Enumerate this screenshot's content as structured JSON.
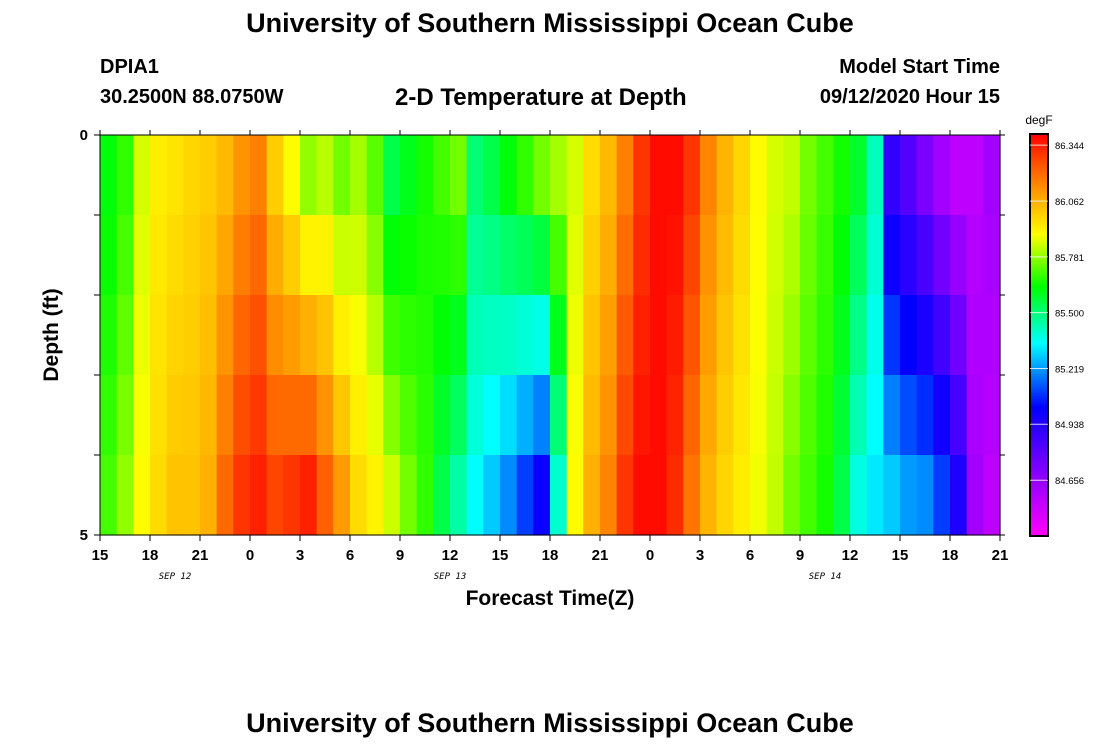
{
  "header": {
    "title": "University of Southern Mississippi Ocean Cube",
    "station": "DPIA1",
    "coords": "30.2500N 88.0750W",
    "subtitle": "2-D Temperature at Depth",
    "model_label": "Model Start Time",
    "model_time": "09/12/2020 Hour 15"
  },
  "footer": {
    "title": "University of Southern Mississippi Ocean Cube"
  },
  "chart_data": {
    "type": "heatmap",
    "xlabel": "Forecast Time(Z)",
    "ylabel": "Depth (ft)",
    "x_tick_labels": [
      "15",
      "18",
      "21",
      "0",
      "3",
      "6",
      "9",
      "12",
      "15",
      "18",
      "21",
      "0",
      "3",
      "6",
      "9",
      "12",
      "15",
      "18",
      "21"
    ],
    "date_labels": [
      {
        "label": "SEP 12",
        "x": 4.5
      },
      {
        "label": "SEP 13",
        "x": 21
      },
      {
        "label": "SEP 14",
        "x": 43.5
      }
    ],
    "y_tick_labels": [
      "0",
      "5"
    ],
    "ylim": [
      0,
      5
    ],
    "colorbar": {
      "unit": "degF",
      "min": 84.375,
      "max": 86.4,
      "tick_values": [
        86.344,
        86.062,
        85.781,
        85.5,
        85.219,
        84.938,
        84.656
      ],
      "tick_labels": [
        "86.344",
        "86.062",
        "85.781",
        "85.500",
        "85.219",
        "84.938",
        "84.656"
      ]
    },
    "n_hours": 54,
    "depth_rows": 5,
    "profile_surface": [
      85.62,
      85.68,
      85.85,
      85.93,
      85.95,
      85.98,
      86.0,
      86.04,
      86.12,
      86.16,
      86.0,
      85.9,
      85.78,
      85.82,
      85.75,
      85.8,
      85.72,
      85.55,
      85.6,
      85.65,
      85.7,
      85.75,
      85.5,
      85.55,
      85.62,
      85.68,
      85.75,
      85.8,
      85.85,
      85.97,
      86.04,
      86.16,
      86.3,
      86.38,
      86.38,
      86.3,
      86.15,
      86.05,
      85.98,
      85.9,
      85.85,
      85.83,
      85.75,
      85.7,
      85.65,
      85.58,
      85.42,
      84.9,
      84.82,
      84.72,
      84.62,
      84.55,
      84.55,
      84.62
    ],
    "profile_bottom": [
      85.7,
      85.78,
      85.9,
      85.97,
      86.02,
      86.02,
      86.06,
      86.2,
      86.3,
      86.34,
      86.27,
      86.3,
      86.34,
      86.22,
      86.1,
      85.97,
      85.92,
      85.84,
      85.75,
      85.68,
      85.55,
      85.45,
      85.35,
      85.28,
      85.2,
      85.1,
      85.0,
      85.4,
      85.9,
      86.06,
      86.15,
      86.3,
      86.38,
      86.38,
      86.32,
      86.18,
      86.05,
      85.98,
      85.93,
      85.88,
      85.83,
      85.75,
      85.7,
      85.65,
      85.55,
      85.38,
      85.32,
      85.28,
      85.22,
      85.2,
      85.1,
      84.95,
      84.62,
      84.55
    ]
  }
}
